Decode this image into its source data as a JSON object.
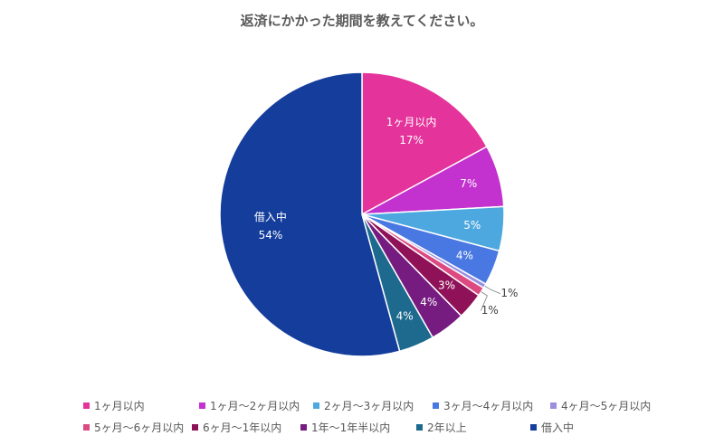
{
  "chart_data": {
    "type": "pie",
    "title": "返済にかかった期間を教えてください。",
    "categories": [
      "1ヶ月以内",
      "1ヶ月〜2ヶ月以内",
      "2ヶ月〜3ヶ月以内",
      "3ヶ月〜4ヶ月以内",
      "4ヶ月〜5ヶ月以内",
      "5ヶ月〜6ヶ月以内",
      "6ヶ月〜1年以内",
      "1年〜1年半以内",
      "2年以上",
      "借入中"
    ],
    "values": [
      17,
      7,
      5,
      4,
      0.5,
      1,
      3,
      4,
      4,
      54
    ],
    "data_labels": [
      "17%",
      "7%",
      "5%",
      "4%",
      "1%",
      "1%",
      "3%",
      "4%",
      "4%",
      "54%"
    ],
    "colors": [
      "#e4339a",
      "#c331ce",
      "#4ca8df",
      "#4a78e2",
      "#9b8fe0",
      "#dc4a81",
      "#8f1258",
      "#761b80",
      "#1d6a8e",
      "#143d9c"
    ],
    "show_category_in_label": [
      true,
      false,
      false,
      false,
      false,
      false,
      false,
      false,
      false,
      true
    ],
    "legend_position": "bottom",
    "start_angle_deg": 0,
    "direction": "clockwise"
  }
}
